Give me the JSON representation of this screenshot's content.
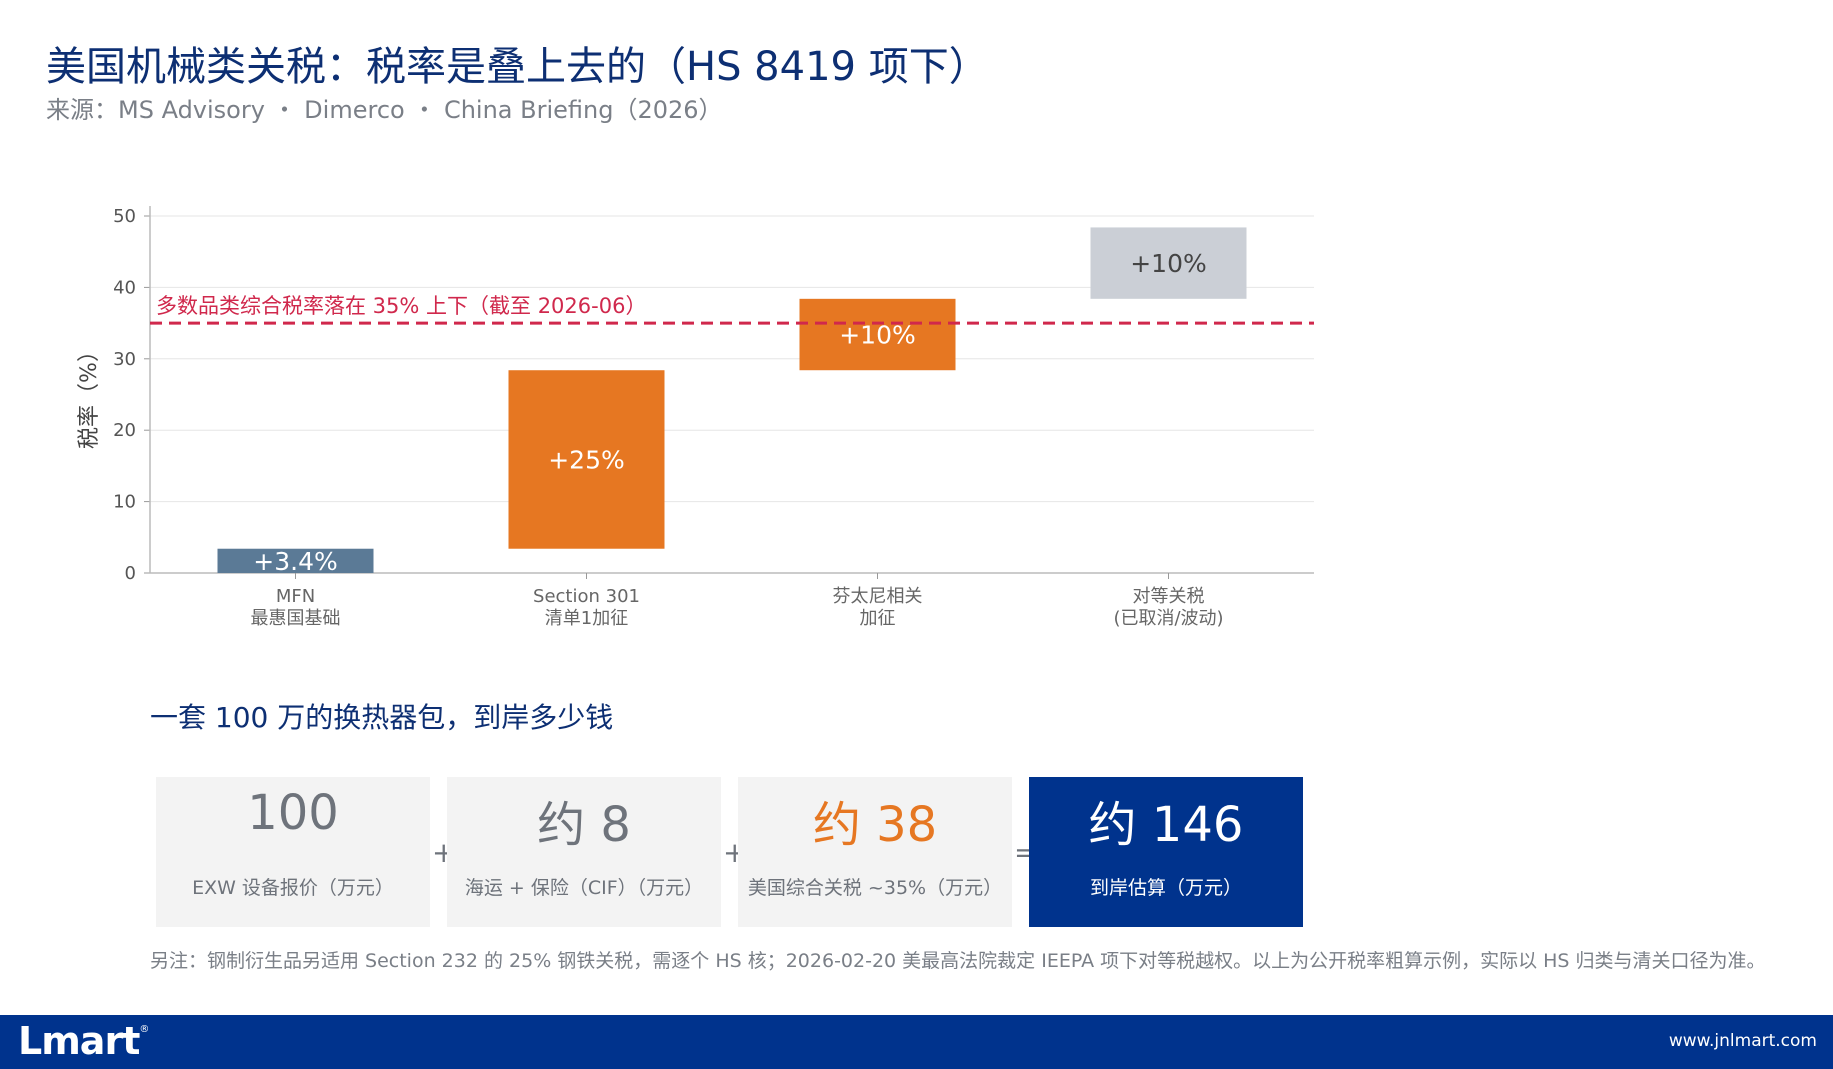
{
  "header": {
    "title": "美国机械类关税：税率是叠上去的（HS 8419 项下）",
    "source": "来源：MS Advisory ・ Dimerco ・ China Briefing（2026）"
  },
  "chart_data": {
    "type": "bar",
    "subtype": "waterfall",
    "ylabel": "税率（%）",
    "ylim": [
      0,
      50
    ],
    "yticks": [
      "0",
      "10",
      "20",
      "30",
      "40",
      "50"
    ],
    "grid": true,
    "categories": [
      {
        "line1": "MFN",
        "line2": "最惠国基础"
      },
      {
        "line1": "Section 301",
        "line2": "清单1加征"
      },
      {
        "line1": "芬太尼相关",
        "line2": "加征"
      },
      {
        "line1": "对等关税",
        "line2": "(已取消/波动)"
      }
    ],
    "bars": [
      {
        "start": 0,
        "end": 3.4,
        "label": "+3.4%",
        "color": "#5b7a96",
        "label_color": "#ffffff"
      },
      {
        "start": 3.4,
        "end": 28.4,
        "label": "+25%",
        "color": "#e67722",
        "label_color": "#ffffff"
      },
      {
        "start": 28.4,
        "end": 38.4,
        "label": "+10%",
        "color": "#e67722",
        "label_color": "#ffffff"
      },
      {
        "start": 38.4,
        "end": 48.4,
        "label": "+10%",
        "color": "#cbcfd6",
        "label_color": "#444444"
      }
    ],
    "reference_line": {
      "value": 35,
      "label": "多数品类综合税率落在 35% 上下（截至 2026-06）",
      "color": "#d0284c"
    }
  },
  "calculation": {
    "heading": "一套 100 万的换热器包，到岸多少钱",
    "items": [
      {
        "value": "100",
        "label": "EXW 设备报价（万元）"
      },
      {
        "value": "约 8",
        "label": "海运 + 保险（CIF）（万元）"
      },
      {
        "value": "约 38",
        "label": "美国综合关税 ~35%（万元）"
      },
      {
        "value": "约 146",
        "label": "到岸估算（万元）"
      }
    ],
    "operators": [
      "+",
      "+",
      "="
    ]
  },
  "note": "另注：钢制衍生品另适用 Section 232 的 25% 钢铁关税，需逐个 HS 核；2026-02-20 美最高法院裁定 IEEPA 项下对等税越权。以上为公开税率粗算示例，实际以 HS 归类与清关口径为准。",
  "footer": {
    "logo": "Lmart",
    "logo_mark": "®",
    "website": "www.jnlmart.com"
  }
}
